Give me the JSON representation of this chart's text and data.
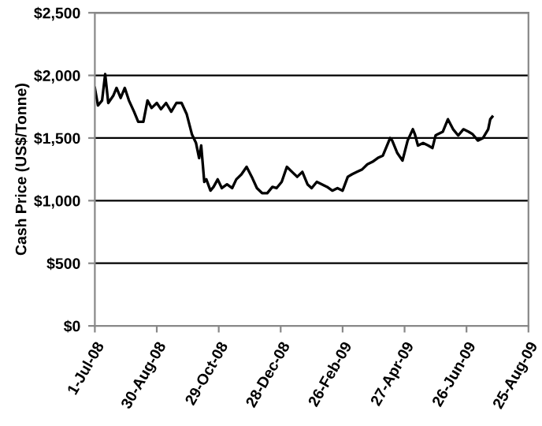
{
  "chart_data": {
    "type": "line",
    "ylabel": "Cash Price (US$/Tonne)",
    "x": [
      "2008-07-01",
      "2008-07-04",
      "2008-07-08",
      "2008-07-11",
      "2008-07-14",
      "2008-07-19",
      "2008-07-22",
      "2008-07-26",
      "2008-07-30",
      "2008-08-03",
      "2008-08-08",
      "2008-08-12",
      "2008-08-17",
      "2008-08-21",
      "2008-08-25",
      "2008-08-30",
      "2008-09-03",
      "2008-09-08",
      "2008-09-13",
      "2008-09-18",
      "2008-09-23",
      "2008-09-28",
      "2008-10-03",
      "2008-10-07",
      "2008-10-10",
      "2008-10-12",
      "2008-10-15",
      "2008-10-17",
      "2008-10-21",
      "2008-10-24",
      "2008-10-28",
      "2008-11-01",
      "2008-11-06",
      "2008-11-11",
      "2008-11-15",
      "2008-11-20",
      "2008-11-25",
      "2008-11-30",
      "2008-12-05",
      "2008-12-10",
      "2008-12-15",
      "2008-12-20",
      "2008-12-24",
      "2008-12-29",
      "2009-01-03",
      "2009-01-08",
      "2009-01-13",
      "2009-01-18",
      "2009-01-23",
      "2009-01-27",
      "2009-02-01",
      "2009-02-06",
      "2009-02-11",
      "2009-02-16",
      "2009-02-21",
      "2009-02-26",
      "2009-03-03",
      "2009-03-07",
      "2009-03-12",
      "2009-03-17",
      "2009-03-22",
      "2009-03-27",
      "2009-04-01",
      "2009-04-06",
      "2009-04-11",
      "2009-04-13",
      "2009-04-15",
      "2009-04-20",
      "2009-04-25",
      "2009-04-30",
      "2009-05-05",
      "2009-05-07",
      "2009-05-10",
      "2009-05-15",
      "2009-05-20",
      "2009-05-24",
      "2009-05-27",
      "2009-05-29",
      "2009-06-03",
      "2009-06-08",
      "2009-06-13",
      "2009-06-18",
      "2009-06-23",
      "2009-06-28",
      "2009-07-02",
      "2009-07-07",
      "2009-07-12",
      "2009-07-17",
      "2009-07-19",
      "2009-07-21"
    ],
    "series": [
      {
        "color": "#000000",
        "values": [
          1900,
          1760,
          1800,
          2010,
          1780,
          1840,
          1900,
          1820,
          1900,
          1800,
          1710,
          1630,
          1630,
          1800,
          1740,
          1780,
          1730,
          1780,
          1710,
          1780,
          1780,
          1690,
          1530,
          1460,
          1340,
          1440,
          1150,
          1170,
          1080,
          1110,
          1170,
          1100,
          1130,
          1100,
          1170,
          1210,
          1270,
          1190,
          1100,
          1060,
          1060,
          1110,
          1100,
          1150,
          1270,
          1230,
          1190,
          1230,
          1130,
          1100,
          1150,
          1130,
          1110,
          1080,
          1100,
          1080,
          1190,
          1210,
          1230,
          1250,
          1290,
          1310,
          1340,
          1360,
          1460,
          1500,
          1480,
          1380,
          1320,
          1480,
          1570,
          1530,
          1440,
          1460,
          1440,
          1420,
          1520,
          1530,
          1550,
          1650,
          1570,
          1520,
          1570,
          1550,
          1530,
          1480,
          1500,
          1570,
          1650,
          1670
        ]
      }
    ],
    "xlim": [
      "2008-07-01",
      "2009-08-25"
    ],
    "xticks": [
      {
        "value": "2008-07-01",
        "label": "1-Jul-08"
      },
      {
        "value": "2008-08-30",
        "label": "30-Aug-08"
      },
      {
        "value": "2008-10-29",
        "label": "29-Oct-08"
      },
      {
        "value": "2008-12-28",
        "label": "28-Dec-08"
      },
      {
        "value": "2009-02-26",
        "label": "26-Feb-09"
      },
      {
        "value": "2009-04-27",
        "label": "27-Apr-09"
      },
      {
        "value": "2009-06-26",
        "label": "26-Jun-09"
      },
      {
        "value": "2009-08-25",
        "label": "25-Aug-09"
      }
    ],
    "ylim": [
      0,
      2500
    ],
    "yticks": [
      {
        "value": 0,
        "label": "$0"
      },
      {
        "value": 500,
        "label": "$500"
      },
      {
        "value": 1000,
        "label": "$1,000"
      },
      {
        "value": 1500,
        "label": "$1,500"
      },
      {
        "value": 2000,
        "label": "$2,000"
      },
      {
        "value": 2500,
        "label": "$2,500"
      }
    ],
    "grid": "y",
    "line_style": "solid"
  }
}
